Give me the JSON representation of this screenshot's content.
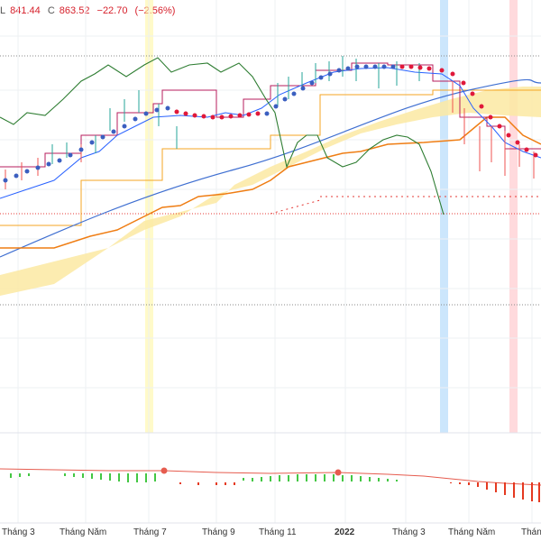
{
  "legend": {
    "prefix": "L",
    "low_label": "L",
    "low": "841.44",
    "close_label": "C",
    "close": "863.52",
    "change": "−22.70",
    "change_pct": "(−2.56%)"
  },
  "colors": {
    "up_candle": "#26a69a",
    "down_candle": "#ef5350",
    "tenkan": "#2962ff",
    "kijun": "#b71c5c",
    "lagging": "#2e7d32",
    "ma_slow": "#3f6fd1",
    "ma_fast": "#ef7d13",
    "cloud": "#fbe9a2",
    "sar_up": "#3b5fc0",
    "sar_down": "#e0183a",
    "highlight_yellow": "#fff59d",
    "highlight_blue": "#bbdefb",
    "highlight_red": "#ffcdd2",
    "hist_up": "#43c743",
    "hist_down": "#e53920"
  },
  "chart_data": {
    "type": "line",
    "x_tick_labels": [
      "Tháng 3",
      "Tháng Năm",
      "Tháng 7",
      "Tháng 9",
      "Tháng 11",
      "2022",
      "Tháng 3",
      "Tháng Năm",
      "Tháng"
    ],
    "bold_ticks": [
      "2022"
    ],
    "last_bar": {
      "low": 841.44,
      "close": 863.52,
      "change": -22.7,
      "change_pct": -2.56
    },
    "series": [
      {
        "values": [
          880,
          895,
          905,
          920,
          935,
          950,
          965,
          975,
          985,
          990,
          1000,
          1015,
          1030,
          1045,
          1060,
          1075,
          1080,
          1085,
          1090
        ]
      },
      {
        "values": [
          820,
          830,
          840,
          850,
          860,
          870,
          885,
          900,
          915,
          930,
          945,
          960,
          980,
          1000,
          1020,
          1030,
          1040,
          1050,
          1055
        ]
      },
      {
        "values": [
          900,
          930,
          960,
          990,
          1020,
          1040,
          1060,
          1080,
          1100,
          1110,
          1120,
          1135,
          1145,
          1150,
          1160,
          1165,
          1155,
          1120,
          1090
        ]
      }
    ]
  }
}
